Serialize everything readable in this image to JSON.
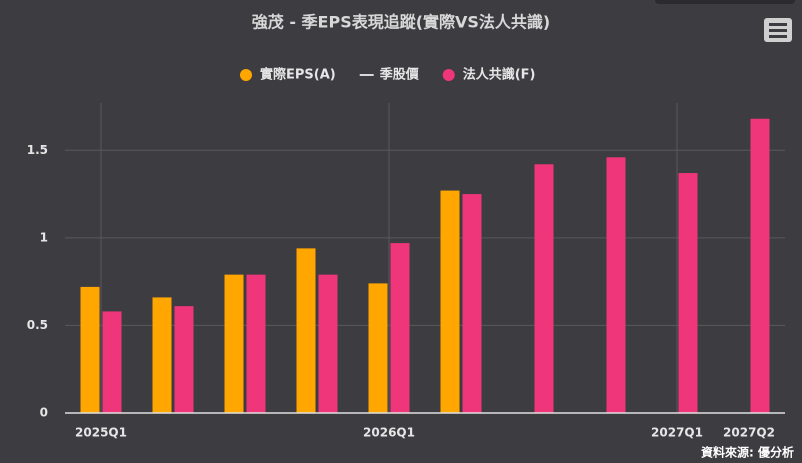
{
  "chart_data": {
    "type": "bar",
    "title": "強茂 - 季EPS表現追蹤(實際VS法人共識)",
    "categories": [
      "2025Q1",
      null,
      null,
      null,
      "2026Q1",
      null,
      null,
      null,
      "2027Q1",
      "2027Q2"
    ],
    "series": [
      {
        "name": "實際EPS(A)",
        "color": "#ffa600",
        "values": [
          0.72,
          0.66,
          0.79,
          0.94,
          0.74,
          1.27,
          null,
          null,
          null,
          null
        ]
      },
      {
        "name": "季股價",
        "color": "#d9d9d9",
        "type": "line",
        "values": [
          null,
          null,
          null,
          null,
          null,
          null,
          null,
          null,
          null,
          null
        ]
      },
      {
        "name": "法人共識(F)",
        "color": "#f0367a",
        "values": [
          0.58,
          0.61,
          0.79,
          0.79,
          0.97,
          1.25,
          1.42,
          1.46,
          1.37,
          1.68
        ]
      }
    ],
    "ylim": [
      0,
      1.77
    ],
    "yticks": [
      0,
      0.5,
      1,
      1.5
    ],
    "grid": true,
    "source": "資料來源: 優分析"
  }
}
